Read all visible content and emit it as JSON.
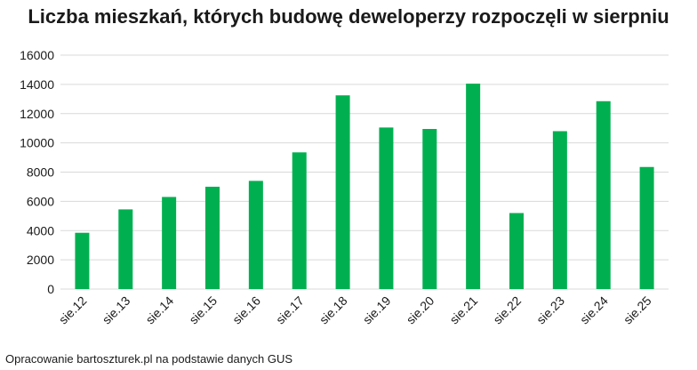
{
  "chart_data": {
    "type": "bar",
    "title": "Liczba mieszkań, których budowę deweloperzy rozpoczęli w sierpniu",
    "categories": [
      "sie.12",
      "sie.13",
      "sie.14",
      "sie.15",
      "sie.16",
      "sie.17",
      "sie.18",
      "sie.19",
      "sie.20",
      "sie.21",
      "sie.22",
      "sie.23",
      "sie.24",
      "sie.25"
    ],
    "values": [
      3850,
      5450,
      6300,
      7000,
      7400,
      9350,
      13250,
      11050,
      10950,
      14050,
      5200,
      10800,
      12850,
      8350
    ],
    "ylim": [
      0,
      16000
    ],
    "yticks": [
      0,
      2000,
      4000,
      6000,
      8000,
      10000,
      12000,
      14000,
      16000
    ],
    "xlabel": "",
    "ylabel": "",
    "grid": true,
    "legend": "none",
    "bar_color": "#00b050",
    "grid_color": "#d9d9d9",
    "text_color": "#1a1a1a"
  },
  "footnote": "Opracowanie bartoszturek.pl na podstawie danych GUS"
}
